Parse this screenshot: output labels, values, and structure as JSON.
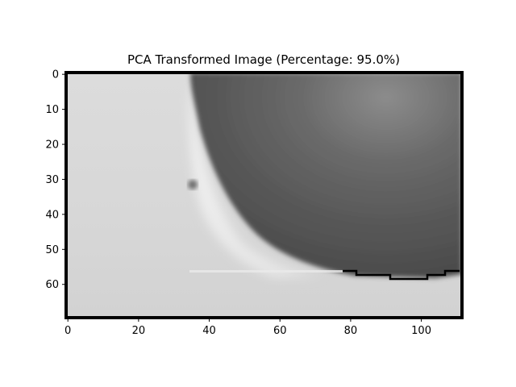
{
  "chart_data": {
    "type": "heatmap",
    "title": "PCA Transformed Image (Percentage: 95.0%)",
    "xlabel": "",
    "ylabel": "",
    "xlim": [
      -0.5,
      111.5
    ],
    "ylim": [
      69.5,
      -0.5
    ],
    "image_width": 112,
    "image_height": 70,
    "colormap": "gray",
    "x_ticks": [
      0,
      20,
      40,
      60,
      80,
      100
    ],
    "x_tick_labels": [
      "0",
      "20",
      "40",
      "60",
      "80",
      "100"
    ],
    "y_ticks": [
      0,
      10,
      20,
      30,
      40,
      50,
      60
    ],
    "y_tick_labels": [
      "0",
      "10",
      "20",
      "30",
      "40",
      "50",
      "60"
    ],
    "grid": false,
    "frame_color": "#000000"
  }
}
